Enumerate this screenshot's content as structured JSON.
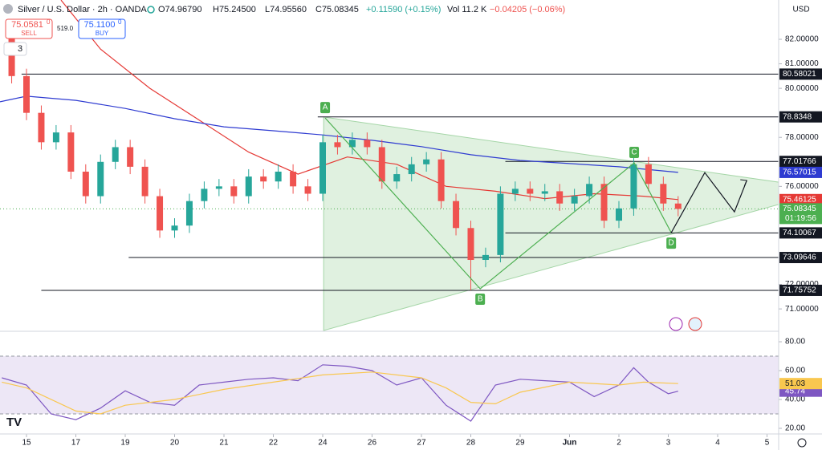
{
  "chart_data": {
    "type": "candlestick",
    "header": {
      "title": "Silver / U.S. Dollar · 2h · OANDA",
      "open": "O74.96790",
      "high": "H75.24500",
      "low": "L74.95560",
      "close": "C75.08345",
      "change": "+0.11590 (+0.15%)",
      "volume": "Vol 11.2 K",
      "vol_change": "−0.04205 (−0.06%)"
    },
    "trade": {
      "sell_price": "75.0581",
      "sell_sup": "0",
      "sell": "SELL",
      "spread": "519.0",
      "buy_price": "75.1100",
      "buy_sup": "0",
      "buy": "BUY",
      "count": "3"
    },
    "currency": "USD",
    "xlim": [
      -0.5366,
      15.236
    ],
    "xticks": [
      {
        "value": 0,
        "label": "15"
      },
      {
        "value": 1,
        "label": "17"
      },
      {
        "value": 2,
        "label": "19"
      },
      {
        "value": 3,
        "label": "20"
      },
      {
        "value": 4,
        "label": "21"
      },
      {
        "value": 5,
        "label": "22"
      },
      {
        "value": 6,
        "label": "24"
      },
      {
        "value": 7,
        "label": "26"
      },
      {
        "value": 8,
        "label": "27"
      },
      {
        "value": 9,
        "label": "28"
      },
      {
        "value": 10,
        "label": "29"
      },
      {
        "value": 11,
        "label": "Jun"
      },
      {
        "value": 12,
        "label": "2"
      },
      {
        "value": 13,
        "label": "3"
      },
      {
        "value": 14,
        "label": "4"
      },
      {
        "value": 15,
        "label": "5"
      }
    ],
    "ylim": [
      70.12,
      83.604
    ],
    "yticks": [
      {
        "value": 82,
        "label": "82.00000"
      },
      {
        "value": 81,
        "label": "81.00000"
      },
      {
        "value": 80,
        "label": "80.00000"
      },
      {
        "value": 78,
        "label": "78.00000"
      },
      {
        "value": 76,
        "label": "76.00000"
      },
      {
        "value": 72,
        "label": "72.00000"
      },
      {
        "value": 71,
        "label": "71.00000"
      }
    ],
    "up_color": "#26a69a",
    "down_color": "#ef5350",
    "x": [
      -0.3,
      0,
      0.3,
      0.6,
      0.9,
      1.2,
      1.5,
      1.8,
      2.1,
      2.4,
      2.7,
      3.0,
      3.3,
      3.6,
      3.9,
      4.2,
      4.5,
      4.8,
      5.1,
      5.4,
      5.7,
      6.0,
      6.3,
      6.6,
      6.9,
      7.2,
      7.5,
      7.8,
      8.1,
      8.4,
      8.7,
      9.0,
      9.3,
      9.6,
      9.9,
      10.2,
      10.5,
      10.8,
      11.1,
      11.4,
      11.7,
      12.0,
      12.3,
      12.6,
      12.9,
      13.2
    ],
    "open": [
      82.5,
      80.5,
      79.0,
      77.8,
      78.2,
      76.6,
      75.6,
      77.0,
      77.6,
      76.8,
      75.6,
      74.2,
      74.4,
      75.4,
      75.9,
      76.0,
      75.6,
      76.4,
      76.2,
      76.6,
      76.0,
      75.7,
      77.8,
      77.6,
      77.9,
      77.6,
      76.2,
      76.5,
      76.9,
      77.1,
      75.4,
      74.3,
      73.0,
      73.2,
      75.7,
      75.9,
      75.7,
      75.8,
      75.3,
      75.6,
      76.1,
      74.6,
      75.1,
      76.9,
      76.1,
      75.3
    ],
    "high": [
      82.8,
      80.8,
      79.3,
      78.5,
      78.5,
      76.9,
      77.3,
      77.9,
      77.9,
      77.1,
      75.9,
      74.7,
      75.7,
      76.2,
      76.3,
      76.3,
      76.7,
      76.7,
      76.9,
      76.9,
      76.3,
      78.1,
      78.1,
      78.2,
      78.2,
      77.9,
      76.8,
      77.2,
      77.4,
      77.4,
      75.7,
      74.6,
      73.5,
      76.0,
      76.2,
      76.2,
      76.1,
      76.1,
      75.9,
      76.4,
      76.4,
      75.4,
      77.2,
      77.2,
      76.4,
      75.6
    ],
    "low": [
      80.2,
      78.7,
      77.5,
      77.5,
      76.3,
      75.3,
      75.3,
      76.7,
      76.5,
      75.3,
      73.9,
      73.9,
      74.1,
      75.1,
      75.6,
      75.3,
      75.3,
      75.9,
      75.9,
      75.7,
      75.4,
      75.4,
      77.3,
      77.3,
      77.3,
      75.9,
      75.9,
      76.2,
      76.6,
      75.1,
      74.0,
      71.76,
      72.7,
      72.9,
      75.4,
      75.4,
      75.4,
      75.0,
      75.0,
      75.3,
      74.3,
      74.3,
      74.8,
      75.8,
      75.0,
      74.78
    ],
    "close": [
      80.5,
      79.0,
      77.8,
      78.2,
      76.6,
      75.6,
      77.0,
      77.6,
      76.8,
      75.6,
      74.2,
      74.4,
      75.4,
      75.9,
      76.0,
      75.6,
      76.4,
      76.2,
      76.6,
      76.0,
      75.7,
      77.8,
      77.6,
      77.9,
      77.6,
      76.2,
      76.5,
      76.9,
      77.1,
      75.4,
      74.3,
      73.0,
      73.2,
      75.7,
      75.9,
      75.7,
      75.8,
      75.3,
      75.6,
      76.1,
      74.6,
      75.1,
      76.9,
      76.1,
      75.3,
      75.08
    ],
    "overlays": [
      {
        "color": "#e53935",
        "x": [
          0.7,
          1.5,
          2.5,
          3.5,
          4.5,
          5.5,
          6.5,
          7.5,
          8.5,
          9.5,
          10.5,
          11.5,
          12.5,
          13.2
        ],
        "values": [
          83.6,
          81.6,
          80,
          78.7,
          77.4,
          76.5,
          77.2,
          76.9,
          76,
          75.8,
          75.5,
          75.7,
          75.6,
          75.46125
        ]
      },
      {
        "color": "#2e3bd1",
        "x": [
          -0.5366,
          0,
          1,
          2,
          3,
          4,
          5,
          6,
          7,
          8,
          9,
          10,
          11,
          12,
          13.2
        ],
        "values": [
          79.45,
          79.68,
          79.51,
          79.18,
          78.76,
          78.43,
          78.27,
          78.1,
          77.88,
          77.62,
          77.29,
          77.06,
          76.93,
          76.8,
          76.57015
        ]
      }
    ],
    "levels": [
      {
        "value": 80.58021,
        "x_start": -0.1
      },
      {
        "value": 78.8348,
        "x_start": 5.9
      },
      {
        "value": 77.01766,
        "x_start": 9.7
      },
      {
        "value": 74.10067,
        "x_start": 9.7
      },
      {
        "value": 73.09646,
        "x_start": 2.07
      },
      {
        "value": 71.75752,
        "x_start": 0.3
      }
    ],
    "triangle": {
      "x": [
        6.02,
        15.236,
        15.236,
        6.02
      ],
      "y": [
        78.83,
        76.17,
        75.26,
        70.12
      ],
      "color": "#a5d6a7"
    },
    "pattern": {
      "x": [
        6.05,
        9.19,
        12.31,
        13.06
      ],
      "y": [
        78.79,
        71.82,
        76.96,
        74.11
      ],
      "labels": [
        "A",
        "B",
        "C",
        "D"
      ],
      "color": "#4caf50"
    },
    "projection": {
      "x": [
        13.06,
        13.74,
        14.34,
        14.59
      ],
      "y": [
        74.11,
        76.56,
        74.96,
        76.24
      ]
    },
    "badges": [
      {
        "value": 76.57015,
        "color": "#2e3bd1"
      },
      {
        "value": 75.46125,
        "color": "#e53935"
      },
      {
        "value": 75.08345,
        "color": "#4caf50",
        "timer": "01:19:56"
      }
    ],
    "rsi": {
      "ylim": [
        16.65,
        86.15
      ],
      "band": [
        30,
        70
      ],
      "band_color": "#ede7f6",
      "yticks": [
        {
          "value": 80,
          "label": "80.00"
        },
        {
          "value": 60,
          "label": "60.00"
        },
        {
          "value": 40,
          "label": "40.00"
        },
        {
          "value": 20,
          "label": "20.00"
        }
      ],
      "series": [
        {
          "color": "#7e57c2",
          "x": [
            -0.5,
            0,
            0.5,
            1,
            1.5,
            2,
            2.5,
            3,
            3.5,
            4,
            4.5,
            5,
            5.5,
            6,
            6.5,
            7,
            7.5,
            8,
            8.5,
            9,
            9.5,
            10,
            10.5,
            11,
            11.5,
            12,
            12.3,
            12.6,
            13,
            13.2
          ],
          "values": [
            55,
            50,
            30,
            26,
            34,
            46,
            38,
            36,
            50,
            52,
            54,
            55,
            53,
            64,
            63,
            60,
            50,
            55,
            36,
            25,
            50,
            54,
            53,
            52,
            42,
            50,
            62,
            52,
            44,
            45.74
          ],
          "badge": "45.74"
        },
        {
          "color": "#f9c74f",
          "x": [
            -0.5,
            0,
            1,
            1.5,
            2,
            3,
            4,
            5,
            6,
            7,
            8,
            8.5,
            9,
            9.5,
            10,
            11,
            12,
            12.5,
            13.2
          ],
          "values": [
            52,
            48,
            32,
            30,
            36,
            40,
            47,
            52,
            57,
            59,
            55,
            48,
            38,
            37,
            45,
            52,
            50,
            52,
            51.03
          ],
          "badge": "51.03"
        }
      ]
    }
  }
}
